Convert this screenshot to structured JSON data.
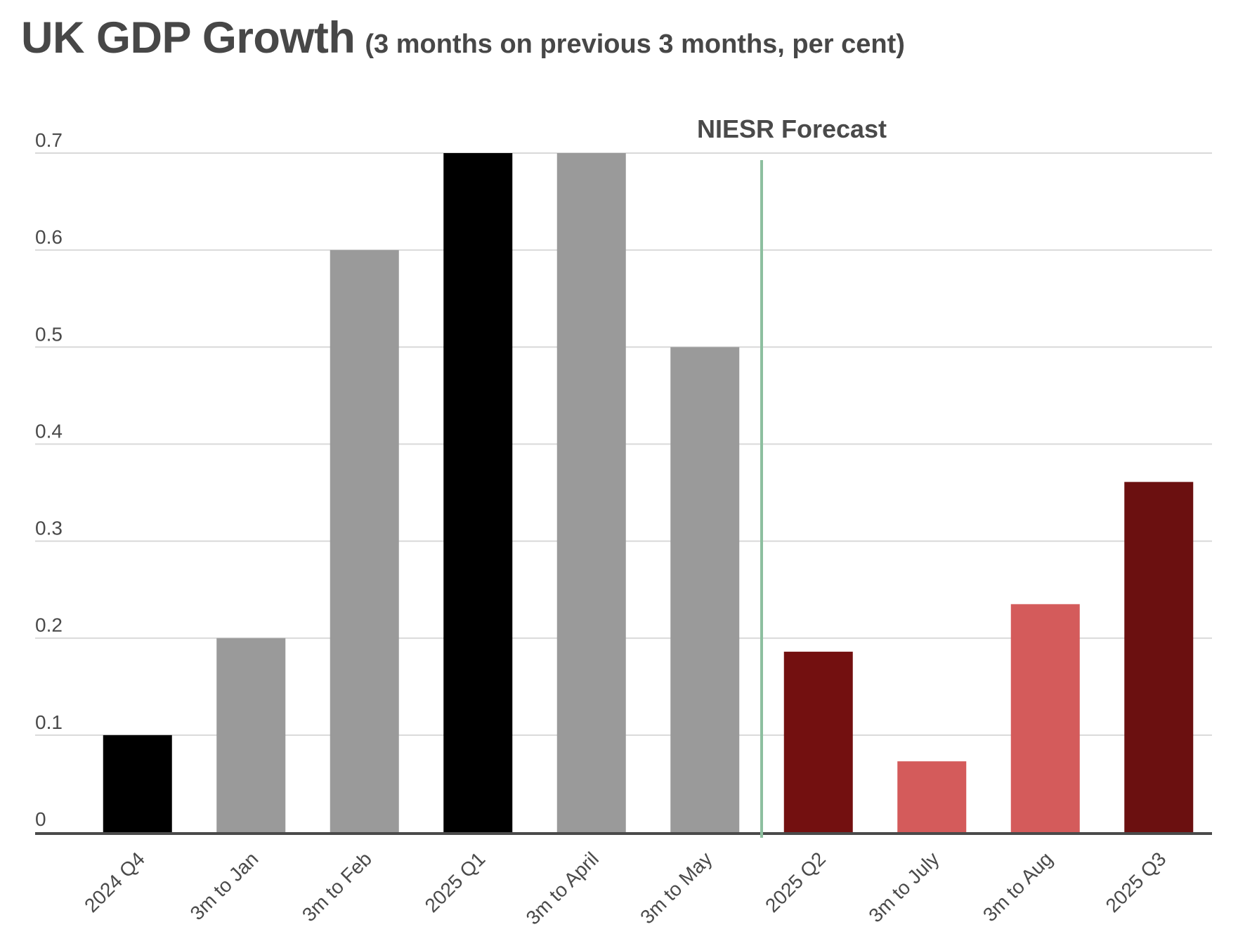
{
  "chart_data": {
    "type": "bar",
    "title": "UK GDP Growth",
    "subtitle": "(3 months on previous 3 months, per cent)",
    "xlabel": "",
    "ylabel": "",
    "ylim": [
      0,
      0.7
    ],
    "yticks": [
      "0",
      "0.1",
      "0.2",
      "0.3",
      "0.4",
      "0.5",
      "0.6",
      "0.7"
    ],
    "grid": true,
    "categories": [
      "2024 Q4",
      "3m to Jan",
      "3m to Feb",
      "2025 Q1",
      "3m to April",
      "3m to May",
      "2025 Q2",
      "3m to July",
      "3m to Aug",
      "2025 Q3"
    ],
    "values": [
      0.1,
      0.2,
      0.6,
      0.7,
      0.7,
      0.5,
      0.186,
      0.073,
      0.235,
      0.361
    ],
    "bar_colors": [
      "#000000",
      "#9a9a9a",
      "#9a9a9a",
      "#000000",
      "#9a9a9a",
      "#9a9a9a",
      "#731010",
      "#d45b5b",
      "#d45b5b",
      "#6b1010"
    ],
    "annotation": {
      "label": "NIESR Forecast",
      "position": "between 3m to May and 2025 Q2",
      "line_color": "#8dbf9f"
    },
    "colors": {
      "title": "#474747",
      "grid": "#d9d9d9",
      "axis": "#4a4a4a",
      "text": "#4a4a4a"
    }
  }
}
